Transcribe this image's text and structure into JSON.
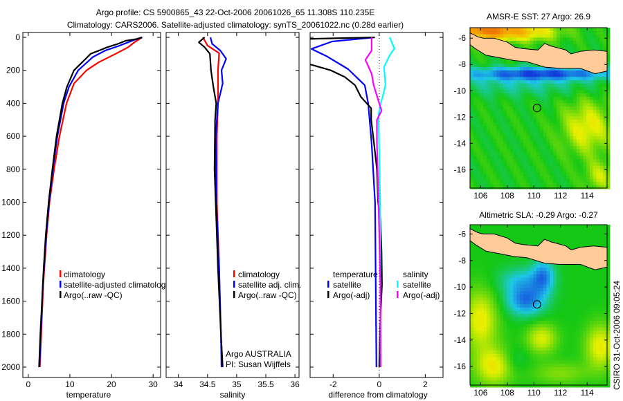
{
  "title": {
    "line1": "Argo profile: CS 5900865_43 22-Oct-2006 20061026_65 11.308S 110.235E",
    "line2": "Climatology: CARS2006. Satellite-adjusted climatology: synTS_20061022.nc (0.28d earlier)"
  },
  "footer_stamp": "CSIRO 31-Oct-2006 09:05:24",
  "colors": {
    "climatology": "#ff0000",
    "satellite": "#0000ff",
    "argo": "#000000",
    "sal_satellite": "#00ffff",
    "sal_argo": "#ff00ff",
    "land": "#ffcc99"
  },
  "chart_data": [
    {
      "type": "line",
      "id": "temperature",
      "xlabel": "temperature",
      "ylabel": "",
      "xlim": [
        -1.3,
        31.8
      ],
      "ylim": [
        2000,
        0
      ],
      "xticks": [
        0,
        10,
        20,
        30
      ],
      "xtick_labels": [
        "0",
        "10",
        "20",
        "30"
      ],
      "yticks": [
        0,
        200,
        400,
        600,
        800,
        1000,
        1200,
        1400,
        1600,
        1800,
        2000
      ],
      "ytick_labels": [
        "0",
        "200",
        "400",
        "600",
        "800",
        "1000",
        "1200",
        "1400",
        "1600",
        "1800",
        "2000"
      ],
      "legend": {
        "placement": "center-left",
        "items": [
          "climatology",
          "satellite-adjusted climatology",
          "Argo(..raw -QC)"
        ]
      },
      "series": [
        {
          "name": "climatology",
          "color": "#ff0000",
          "depth": [
            0,
            30,
            60,
            100,
            150,
            200,
            280,
            400,
            600,
            800,
            1000,
            1200,
            1500,
            1800,
            2000
          ],
          "values": [
            27.4,
            25.5,
            24,
            21,
            17,
            14,
            11,
            9.2,
            7.5,
            6.2,
            5.1,
            4.4,
            3.6,
            3.1,
            2.8
          ]
        },
        {
          "name": "satellite-adjusted climatology",
          "color": "#0000ff",
          "depth": [
            0,
            20,
            50,
            80,
            120,
            200,
            300,
            400,
            600,
            800,
            1000,
            1200,
            1500,
            1800,
            2000
          ],
          "values": [
            27.4,
            25,
            22,
            18.5,
            15.5,
            12,
            9.8,
            8.5,
            7,
            5.9,
            5.0,
            4.3,
            3.5,
            3.0,
            2.7
          ]
        },
        {
          "name": "Argo(..raw -QC)",
          "color": "#000000",
          "depth": [
            0,
            10,
            20,
            40,
            60,
            80,
            100,
            150,
            200,
            300,
            400,
            600,
            800,
            1000,
            1200,
            1400,
            1600,
            1800,
            2000
          ],
          "values": [
            27.3,
            26,
            23.5,
            21.5,
            19,
            17,
            15,
            13,
            11,
            9.3,
            8.2,
            6.8,
            5.8,
            4.9,
            4.2,
            3.7,
            3.3,
            2.9,
            2.6
          ]
        }
      ]
    },
    {
      "type": "line",
      "id": "salinity",
      "xlabel": "salinity",
      "xlim": [
        33.79,
        36.07
      ],
      "ylim": [
        2000,
        0
      ],
      "xticks": [
        34,
        34.5,
        35,
        35.5,
        36
      ],
      "xtick_labels": [
        "34",
        "34.5",
        "35",
        "35.5",
        "36"
      ],
      "legend": {
        "placement": "center",
        "items": [
          "climatology",
          "satellite adj. clim.",
          "Argo(..raw -QC)"
        ]
      },
      "annotation": [
        "Argo AUSTRALIA",
        "PI: Susan Wijffels"
      ],
      "series": [
        {
          "name": "climatology",
          "color": "#ff0000",
          "depth": [
            0,
            50,
            96,
            200,
            300,
            400,
            600,
            1000,
            1400,
            1700
          ],
          "values": [
            34.42,
            34.5,
            34.7,
            34.68,
            34.68,
            34.68,
            34.66,
            34.66,
            34.7,
            34.72
          ]
        },
        {
          "name": "satellite adj. clim.",
          "color": "#0000ff",
          "depth": [
            0,
            40,
            80,
            130,
            200,
            280,
            400,
            600,
            1000,
            1400,
            1800,
            2000
          ],
          "values": [
            34.55,
            34.58,
            34.72,
            34.82,
            34.74,
            34.76,
            34.68,
            34.64,
            34.65,
            34.7,
            34.73,
            34.74
          ]
        },
        {
          "name": "Argo(..raw -QC)",
          "color": "#000000",
          "depth": [
            0,
            30,
            60,
            100,
            200,
            300,
            400,
            500,
            800,
            1000,
            1400,
            1800,
            2000
          ],
          "values": [
            34.45,
            34.35,
            34.45,
            34.54,
            34.56,
            34.6,
            34.65,
            34.63,
            34.62,
            34.64,
            34.68,
            34.73,
            34.76
          ]
        }
      ]
    },
    {
      "type": "line",
      "id": "difference",
      "xlabel": "difference from climatology",
      "xlim": [
        -3.0,
        2.77
      ],
      "ylim": [
        2000,
        0
      ],
      "xticks": [
        -2,
        0,
        2
      ],
      "xtick_labels": [
        "-2",
        "0",
        "2"
      ],
      "legend": {
        "placement": "center",
        "groups": [
          {
            "title": "temperature",
            "items": [
              "satellite",
              "Argo(-adj)"
            ]
          },
          {
            "title": "salinity",
            "items": [
              "satellite",
              "Argo(-adj)"
            ]
          }
        ]
      },
      "series": [
        {
          "name": "temperature satellite",
          "color": "#0000ff",
          "depth": [
            0,
            25,
            70,
            117,
            193,
            290,
            400,
            640,
            1000,
            1500,
            2000
          ],
          "values": [
            -0.19,
            -2.04,
            -2.94,
            -2.25,
            -1.35,
            -0.63,
            -0.48,
            -0.33,
            -0.18,
            -0.15,
            -0.12
          ]
        },
        {
          "name": "temperature Argo(-adj)",
          "color": "#000000",
          "depth": [
            0,
            10,
            160,
            200,
            240,
            290,
            360,
            430,
            500,
            650,
            800,
            1000,
            1100,
            1300,
            1500,
            1700,
            2000
          ],
          "values": [
            -0.2,
            -3.2,
            -3.1,
            -2.1,
            -1.5,
            -1.05,
            -0.8,
            -0.35,
            -0.35,
            -0.22,
            -0.1,
            -0.05,
            0.05,
            0.1,
            0.12,
            0.05,
            0.0
          ]
        },
        {
          "name": "salinity satellite",
          "color": "#00ffff",
          "depth": [
            0,
            67,
            110,
            180,
            290,
            360,
            400,
            470,
            1000,
            2000
          ],
          "values": [
            0.45,
            0.66,
            0.45,
            0.21,
            0.27,
            0.15,
            0.06,
            -0.03,
            0.04,
            0.06
          ]
        },
        {
          "name": "salinity Argo(-adj)",
          "color": "#ff00ff",
          "depth": [
            0,
            80,
            137,
            220,
            290,
            400,
            445,
            500,
            640,
            1000,
            1500,
            2000
          ],
          "values": [
            -0.33,
            -0.33,
            -0.6,
            -0.33,
            -0.24,
            0.0,
            0.1,
            -0.1,
            -0.1,
            -0.03,
            0.05,
            0.06
          ]
        }
      ]
    },
    {
      "type": "heatmap",
      "id": "sst-map",
      "title": "AMSR-E SST: 27 Argo: 26.9",
      "xlim": [
        105.2,
        115.5
      ],
      "ylim": [
        -17.4,
        -5.2
      ],
      "xticks": [
        106,
        108,
        110,
        112,
        114
      ],
      "yticks": [
        -6,
        -8,
        -10,
        -12,
        -14,
        -16
      ],
      "float_position": {
        "lon": 110.235,
        "lat": -11.308
      }
    },
    {
      "type": "heatmap",
      "id": "sla-map",
      "title": "Altimetric SLA: -0.29 Argo: -0.27",
      "xlim": [
        105.2,
        115.5
      ],
      "ylim": [
        -17.4,
        -5.3
      ],
      "xticks": [
        106,
        108,
        110,
        112,
        114
      ],
      "yticks": [
        -6,
        -8,
        -10,
        -12,
        -14,
        -16
      ],
      "float_position": {
        "lon": 110.235,
        "lat": -11.308
      }
    }
  ],
  "java_outline_lonlat": [
    [
      105.2,
      -5.6
    ],
    [
      105.8,
      -5.9
    ],
    [
      106.2,
      -6.0
    ],
    [
      107,
      -6.0
    ],
    [
      108,
      -6.3
    ],
    [
      108.6,
      -6.7
    ],
    [
      109.2,
      -6.8
    ],
    [
      110.3,
      -6.9
    ],
    [
      110.8,
      -6.4
    ],
    [
      111.3,
      -6.6
    ],
    [
      112.4,
      -6.9
    ],
    [
      112.8,
      -7.2
    ],
    [
      113.5,
      -7.0
    ],
    [
      114.5,
      -6.9
    ],
    [
      115.5,
      -7.0
    ],
    [
      115.5,
      -8.5
    ],
    [
      114.6,
      -8.7
    ],
    [
      113.5,
      -8.3
    ],
    [
      112,
      -8.3
    ],
    [
      110.8,
      -8.2
    ],
    [
      109.5,
      -7.8
    ],
    [
      108.5,
      -7.7
    ],
    [
      107.5,
      -7.5
    ],
    [
      106.4,
      -7.3
    ],
    [
      105.6,
      -6.8
    ],
    [
      105.2,
      -6.5
    ]
  ]
}
